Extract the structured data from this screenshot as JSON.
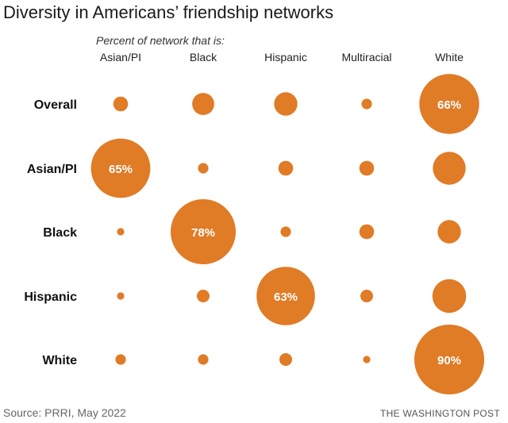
{
  "title": "Diversity in Americans’ friendship networks",
  "subtitle": "Percent of network that is:",
  "source": "Source: PRRI, May 2022",
  "credit": "THE WASHINGTON POST",
  "colors": {
    "bubble": "#e07b26"
  },
  "chart_data": {
    "type": "bubble-matrix",
    "columns": [
      "Asian/PI",
      "Black",
      "Hispanic",
      "Multiracial",
      "White"
    ],
    "rows": [
      "Overall",
      "Asian/PI",
      "Black",
      "Hispanic",
      "White"
    ],
    "values": [
      [
        4,
        9,
        10,
        2,
        66
      ],
      [
        65,
        2,
        4,
        4,
        20
      ],
      [
        1,
        78,
        2,
        4,
        10
      ],
      [
        1,
        3,
        63,
        3,
        21
      ],
      [
        2,
        2,
        3,
        1,
        90
      ]
    ],
    "labels": [
      [
        "",
        "",
        "",
        "",
        "66%"
      ],
      [
        "65%",
        "",
        "",
        "",
        ""
      ],
      [
        "",
        "78%",
        "",
        "",
        ""
      ],
      [
        "",
        "",
        "63%",
        "",
        ""
      ],
      [
        "",
        "",
        "",
        "",
        "90%"
      ]
    ]
  }
}
